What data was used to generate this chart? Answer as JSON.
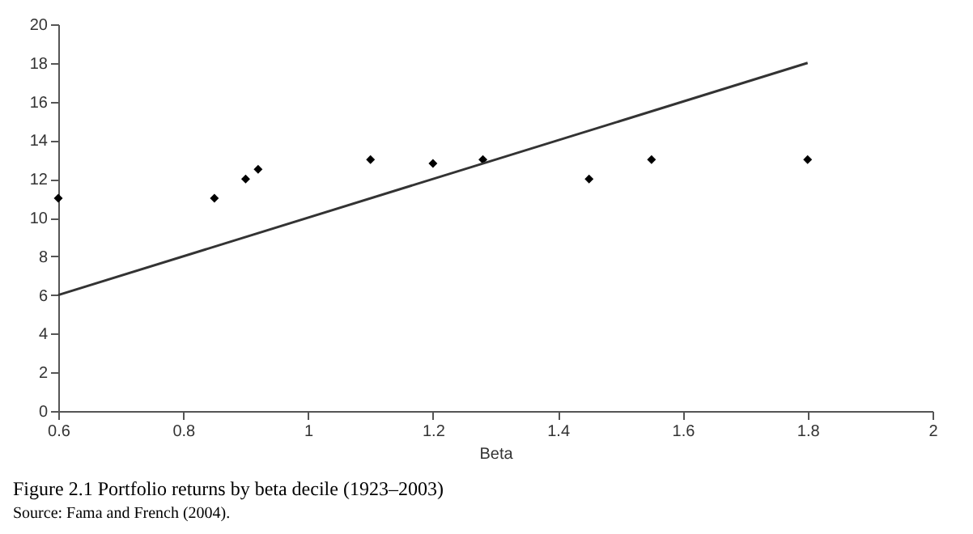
{
  "chart_data": {
    "type": "scatter",
    "title": "Figure 2.1 Portfolio returns by beta decile (1923–2003)",
    "xlabel": "Beta",
    "annotations": [
      "Source: Fama and French (2004)."
    ],
    "series": [
      {
        "color": "#000000",
        "marker": "diamond",
        "x": [
          0.6,
          0.85,
          0.9,
          0.92,
          1.1,
          1.2,
          1.28,
          1.45,
          1.55,
          1.8
        ],
        "values": [
          11,
          11,
          12,
          12.5,
          13,
          12.8,
          13,
          12,
          13,
          13
        ]
      },
      {
        "type": "line",
        "color": "#333333",
        "line_style": "solid",
        "x": [
          0.6,
          1.8
        ],
        "values": [
          6,
          18
        ]
      }
    ],
    "xlim": [
      0.6,
      2
    ],
    "xticks": [
      0.6,
      0.8,
      1,
      1.2,
      1.4,
      1.6,
      1.8,
      2
    ],
    "ylim": [
      0,
      20
    ],
    "yticks": [
      0,
      2,
      4,
      6,
      8,
      10,
      12,
      14,
      16,
      18,
      20
    ],
    "grid": false
  }
}
